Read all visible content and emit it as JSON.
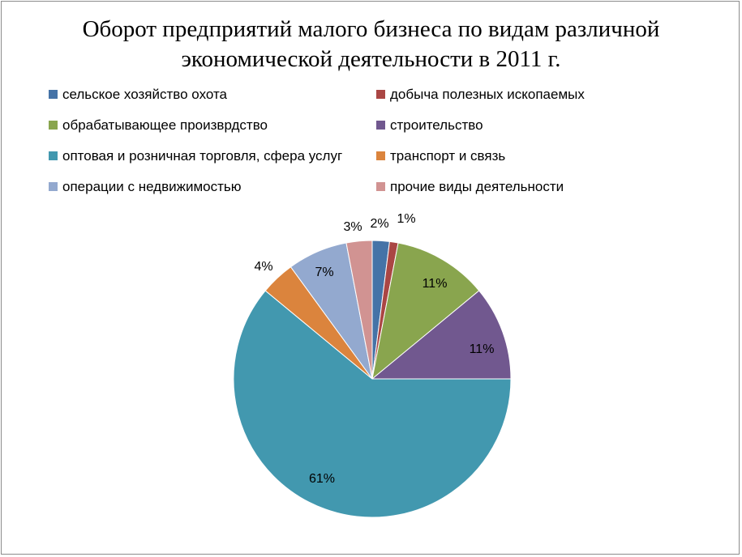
{
  "chart_data": {
    "type": "pie",
    "title_line1": "Оборот предприятий малого бизнеса по видам различной",
    "title_line2": "экономической деятельности в 2011 г.",
    "legend_position": "top",
    "slices": [
      {
        "label": "сельское хозяйство охота",
        "value": 2,
        "display": "2%",
        "color": "#4573a7"
      },
      {
        "label": "добыча полезных ископаемых",
        "value": 1,
        "display": "1%",
        "color": "#aa4644"
      },
      {
        "label": "обрабатывающее произврдство",
        "value": 11,
        "display": "11%",
        "color": "#89a54e"
      },
      {
        "label": "строительство",
        "value": 11,
        "display": "11%",
        "color": "#71588f"
      },
      {
        "label": "оптовая и розничная торговля, сфера услуг",
        "value": 61,
        "display": "61%",
        "color": "#4298af"
      },
      {
        "label": "транспорт и связь",
        "value": 4,
        "display": "4%",
        "color": "#db843d"
      },
      {
        "label": "операции с недвижимостью",
        "value": 7,
        "display": "7%",
        "color": "#93a9cf"
      },
      {
        "label": "прочие виды деятельности",
        "value": 3,
        "display": "3%",
        "color": "#d19392"
      }
    ]
  }
}
